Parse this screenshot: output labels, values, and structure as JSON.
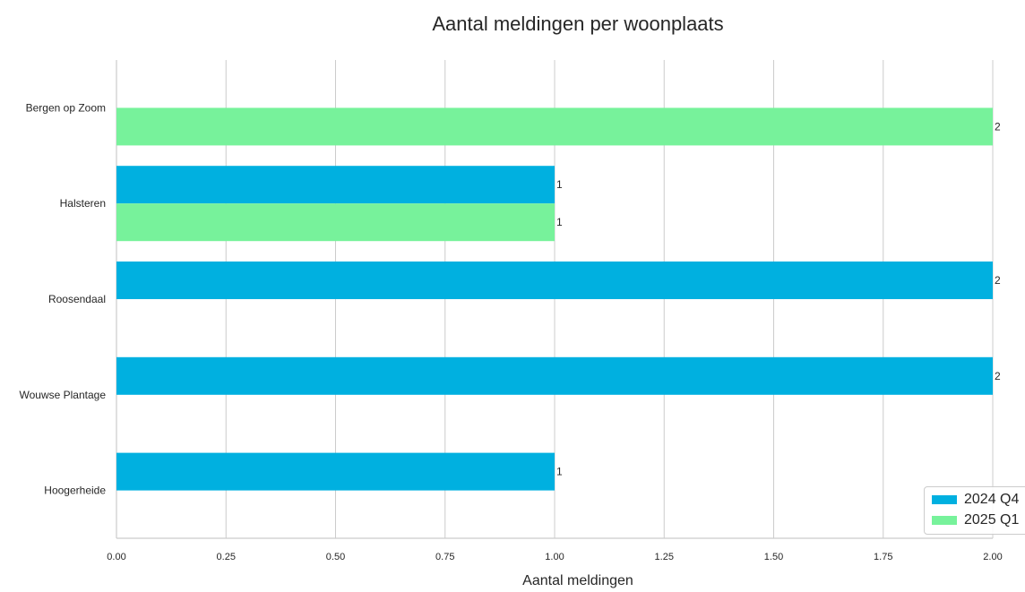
{
  "chart_data": {
    "type": "bar",
    "orientation": "horizontal",
    "title": "Aantal meldingen per woonplaats",
    "xlabel": "Aantal meldingen",
    "ylabel": "",
    "categories": [
      "Bergen op Zoom",
      "Halsteren",
      "Roosendaal",
      "Wouwse Plantage",
      "Hoogerheide"
    ],
    "series": [
      {
        "name": "2024 Q4",
        "color": "#00b0e0",
        "values": [
          null,
          1,
          2,
          2,
          1
        ]
      },
      {
        "name": "2025 Q1",
        "color": "#77f29b",
        "values": [
          2,
          1,
          null,
          null,
          null
        ]
      }
    ],
    "xlim": [
      0,
      2
    ],
    "xticks": [
      "0.00",
      "0.25",
      "0.50",
      "0.75",
      "1.00",
      "1.25",
      "1.50",
      "1.75",
      "2.00"
    ],
    "grid": "vertical",
    "legend_position": "bottom-right"
  }
}
